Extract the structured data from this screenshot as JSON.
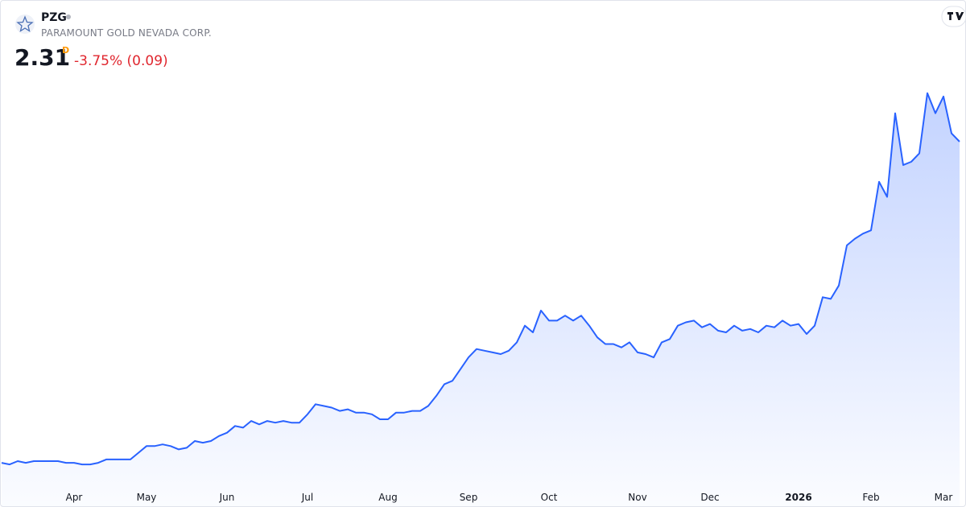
{
  "chart_data": {
    "type": "line",
    "symbol": "PZG",
    "name": "PARAMOUNT GOLD NEVADA CORP.",
    "last_price": 2.31,
    "interval": "D",
    "change_label": "-3.75% (0.09)",
    "color": "#2962ff",
    "ylim": [
      0.27,
      2.7
    ],
    "categories": [
      null,
      null,
      null,
      null,
      null,
      null,
      null,
      null,
      null,
      "Apr",
      null,
      null,
      null,
      null,
      null,
      null,
      null,
      null,
      "May",
      null,
      null,
      null,
      null,
      null,
      null,
      null,
      null,
      null,
      "Jun",
      null,
      null,
      null,
      null,
      null,
      null,
      null,
      null,
      null,
      "Jul",
      null,
      null,
      null,
      null,
      null,
      null,
      null,
      null,
      null,
      "Aug",
      null,
      null,
      null,
      null,
      null,
      null,
      null,
      null,
      null,
      "Sep",
      null,
      null,
      null,
      null,
      null,
      null,
      null,
      null,
      null,
      "Oct",
      null,
      null,
      null,
      null,
      null,
      null,
      null,
      null,
      null,
      null,
      "Nov",
      null,
      null,
      null,
      null,
      null,
      null,
      null,
      null,
      "Dec",
      null,
      null,
      null,
      null,
      null,
      null,
      null,
      null,
      null,
      null,
      "2026",
      null,
      null,
      null,
      null,
      null,
      null,
      null,
      null,
      "Feb",
      null,
      null,
      null,
      null,
      null,
      null,
      null,
      null,
      "Mar",
      null,
      null
    ],
    "values": [
      0.39,
      0.38,
      0.4,
      0.39,
      0.4,
      0.4,
      0.4,
      0.4,
      0.39,
      0.39,
      0.38,
      0.38,
      0.39,
      0.41,
      0.41,
      0.41,
      0.41,
      0.45,
      0.49,
      0.49,
      0.5,
      0.49,
      0.47,
      0.48,
      0.52,
      0.51,
      0.52,
      0.55,
      0.57,
      0.61,
      0.6,
      0.64,
      0.62,
      0.64,
      0.63,
      0.64,
      0.63,
      0.63,
      0.68,
      0.74,
      0.73,
      0.72,
      0.7,
      0.71,
      0.69,
      0.69,
      0.68,
      0.65,
      0.65,
      0.69,
      0.69,
      0.7,
      0.7,
      0.73,
      0.79,
      0.86,
      0.88,
      0.95,
      1.02,
      1.07,
      1.06,
      1.05,
      1.04,
      1.06,
      1.11,
      1.21,
      1.17,
      1.3,
      1.24,
      1.24,
      1.27,
      1.24,
      1.27,
      1.21,
      1.14,
      1.1,
      1.1,
      1.08,
      1.11,
      1.05,
      1.04,
      1.02,
      1.11,
      1.13,
      1.21,
      1.23,
      1.24,
      1.2,
      1.22,
      1.18,
      1.17,
      1.21,
      1.18,
      1.19,
      1.17,
      1.21,
      1.2,
      1.24,
      1.21,
      1.22,
      1.16,
      1.21,
      1.38,
      1.37,
      1.45,
      1.69,
      1.73,
      1.76,
      1.78,
      2.07,
      1.98,
      2.48,
      2.17,
      2.19,
      2.24,
      2.6,
      2.48,
      2.58,
      2.36,
      2.31
    ]
  }
}
